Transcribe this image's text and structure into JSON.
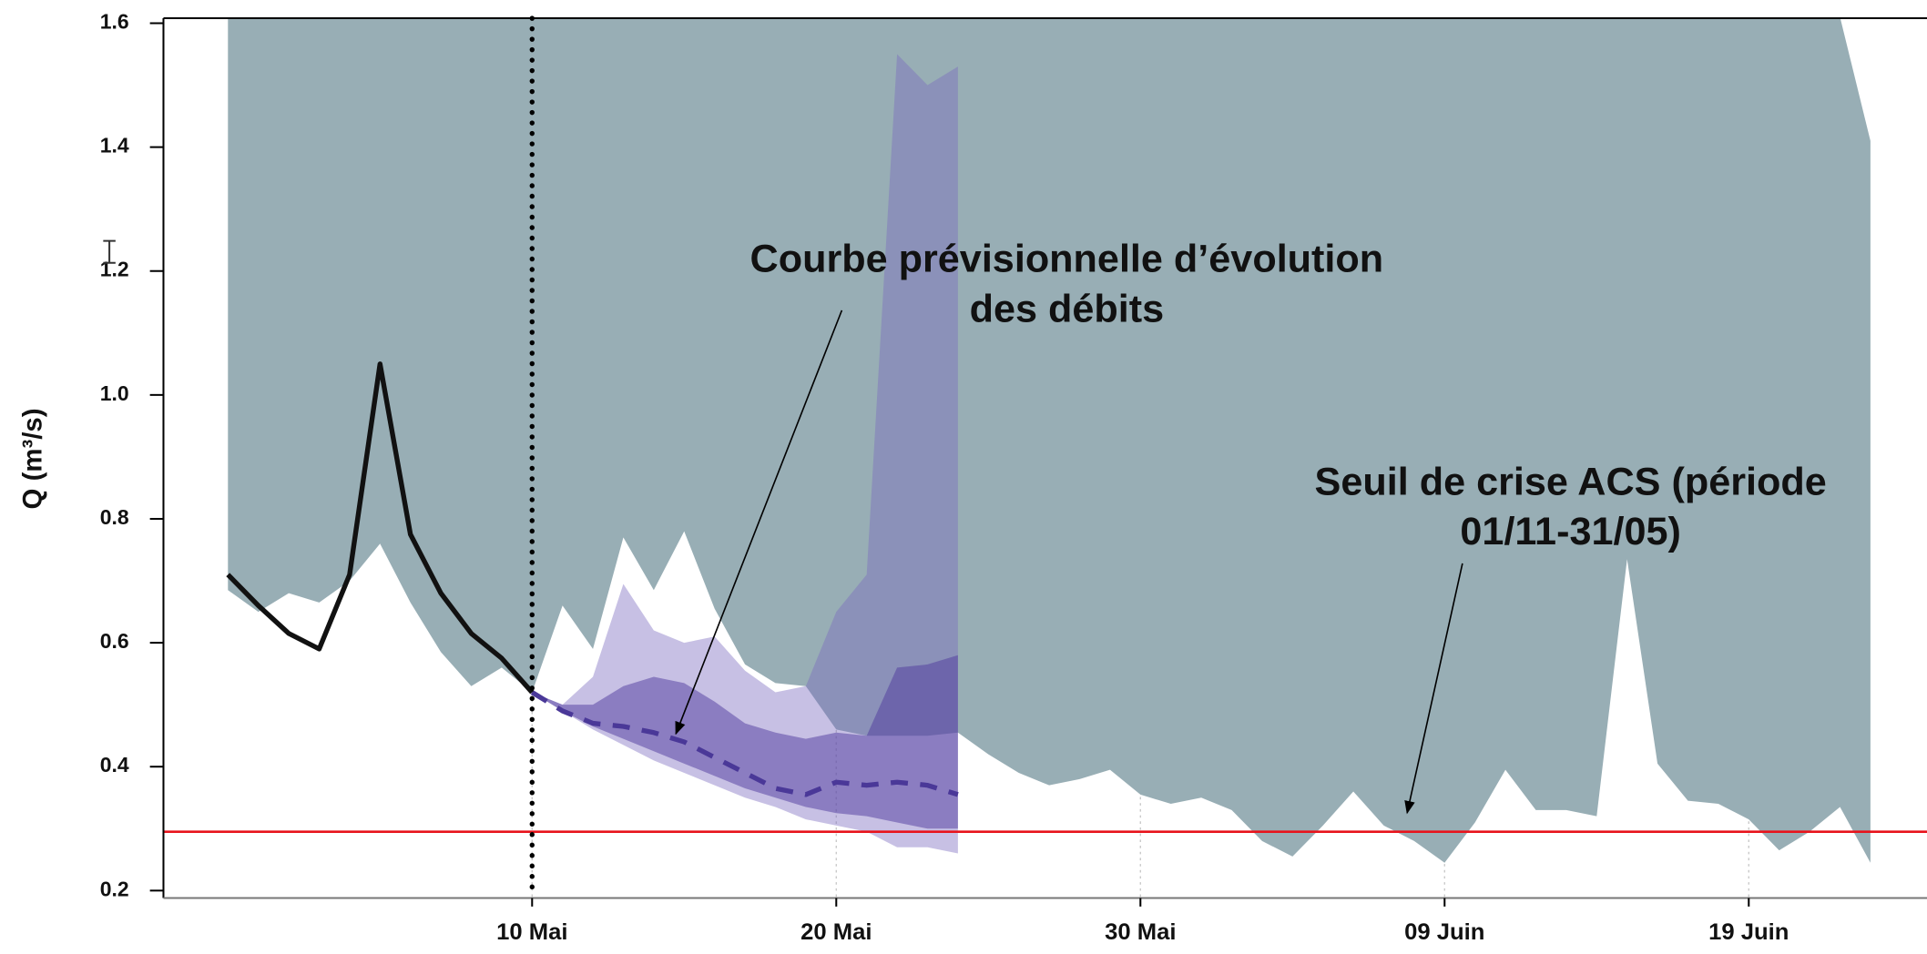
{
  "chart_data": {
    "type": "line",
    "y_label": "Q (m³/s)",
    "xlim": [
      -2.12,
      55.86
    ],
    "ylim": [
      0.188,
      1.608
    ],
    "xticks": [
      {
        "value": 10,
        "label": "10 Mai"
      },
      {
        "value": 20,
        "label": "20 Mai"
      },
      {
        "value": 30,
        "label": "30 Mai"
      },
      {
        "value": 40,
        "label": "09 Juin"
      },
      {
        "value": 50,
        "label": "19 Juin"
      }
    ],
    "yticks": [
      0.2,
      0.4,
      0.6,
      0.8,
      {
        "value": 1.0,
        "label": "1.0"
      },
      1.2,
      1.4,
      1.6
    ],
    "grid": true,
    "series": [
      {
        "kind": "area",
        "color": "#98aeb5",
        "x": [
          0,
          1,
          2,
          3,
          4,
          5,
          6,
          7,
          8,
          9,
          10,
          11,
          12,
          13,
          14,
          15,
          16,
          17,
          18,
          19,
          20,
          21,
          22,
          23,
          24,
          25,
          26,
          27,
          28,
          29,
          30,
          31,
          32,
          33,
          34,
          35,
          36,
          37,
          38,
          39,
          40,
          41,
          42,
          43,
          44,
          45,
          46,
          47,
          48,
          49,
          50,
          51,
          52,
          53,
          54
        ],
        "upper": [
          1.61,
          1.61,
          1.61,
          1.61,
          1.61,
          1.61,
          1.61,
          1.61,
          1.61,
          1.61,
          1.61,
          1.61,
          1.61,
          1.61,
          1.61,
          1.61,
          1.61,
          1.61,
          1.61,
          1.61,
          1.61,
          1.61,
          1.61,
          1.61,
          1.61,
          1.61,
          1.61,
          1.61,
          1.61,
          1.61,
          1.61,
          1.61,
          1.61,
          1.61,
          1.61,
          1.61,
          1.61,
          1.61,
          1.61,
          1.61,
          1.61,
          1.61,
          1.61,
          1.61,
          1.61,
          1.61,
          1.61,
          1.61,
          1.61,
          1.61,
          1.61,
          1.61,
          1.61,
          1.61,
          1.41
        ],
        "lower": [
          0.685,
          0.65,
          0.68,
          0.665,
          0.7,
          0.76,
          0.665,
          0.585,
          0.53,
          0.56,
          0.52,
          0.66,
          0.59,
          0.77,
          0.685,
          0.78,
          0.655,
          0.565,
          0.535,
          0.53,
          0.46,
          0.45,
          0.45,
          0.45,
          0.455,
          0.42,
          0.39,
          0.37,
          0.38,
          0.395,
          0.355,
          0.34,
          0.35,
          0.33,
          0.28,
          0.255,
          0.305,
          0.36,
          0.305,
          0.28,
          0.245,
          0.31,
          0.395,
          0.33,
          0.33,
          0.32,
          0.735,
          0.405,
          0.345,
          0.34,
          0.315,
          0.265,
          0.295,
          0.335,
          0.245
        ]
      },
      {
        "kind": "area",
        "color": "#7a6abf",
        "opacity": 0.42,
        "x": [
          10,
          11,
          12,
          13,
          14,
          15,
          16,
          17,
          18,
          19,
          20,
          21,
          22,
          23,
          24
        ],
        "upper": [
          0.52,
          0.5,
          0.545,
          0.695,
          0.62,
          0.6,
          0.61,
          0.555,
          0.52,
          0.53,
          0.65,
          0.71,
          1.55,
          1.5,
          1.53
        ],
        "lower": [
          0.52,
          0.49,
          0.46,
          0.435,
          0.41,
          0.39,
          0.37,
          0.35,
          0.335,
          0.315,
          0.305,
          0.295,
          0.27,
          0.27,
          0.26
        ]
      },
      {
        "kind": "area",
        "color": "#4f3a9e",
        "opacity": 0.5,
        "x": [
          10,
          11,
          12,
          13,
          14,
          15,
          16,
          17,
          18,
          19,
          20,
          21,
          22,
          23,
          24
        ],
        "upper": [
          0.52,
          0.5,
          0.5,
          0.53,
          0.545,
          0.535,
          0.505,
          0.47,
          0.455,
          0.445,
          0.455,
          0.45,
          0.56,
          0.565,
          0.58
        ],
        "lower": [
          0.52,
          0.49,
          0.465,
          0.445,
          0.425,
          0.405,
          0.385,
          0.365,
          0.35,
          0.335,
          0.325,
          0.32,
          0.31,
          0.3,
          0.3
        ]
      },
      {
        "kind": "line",
        "color": "#4a3898",
        "dash": true,
        "x": [
          10,
          11,
          12,
          13,
          14,
          15,
          16,
          17,
          18,
          19,
          20,
          21,
          22,
          23,
          24
        ],
        "values": [
          0.52,
          0.49,
          0.47,
          0.465,
          0.455,
          0.44,
          0.415,
          0.39,
          0.365,
          0.355,
          0.375,
          0.37,
          0.375,
          0.37,
          0.355
        ]
      },
      {
        "kind": "line",
        "color": "#111111",
        "dash": false,
        "x": [
          0,
          1,
          2,
          3,
          4,
          5,
          6,
          7,
          8,
          9,
          10
        ],
        "values": [
          0.71,
          0.66,
          0.615,
          0.59,
          0.71,
          1.05,
          0.775,
          0.68,
          0.615,
          0.575,
          0.52
        ]
      }
    ],
    "hlines": [
      {
        "value": 0.295,
        "color": "#e8141c"
      }
    ],
    "vlines": [
      {
        "value": 10,
        "color": "#000000"
      }
    ],
    "annotations": [
      {
        "lines": [
          "Courbe prévisionnelle d’évolution",
          "des débits"
        ]
      },
      {
        "lines": [
          "Seuil de crise ACS (période",
          "01/11-31/05)"
        ]
      }
    ]
  }
}
